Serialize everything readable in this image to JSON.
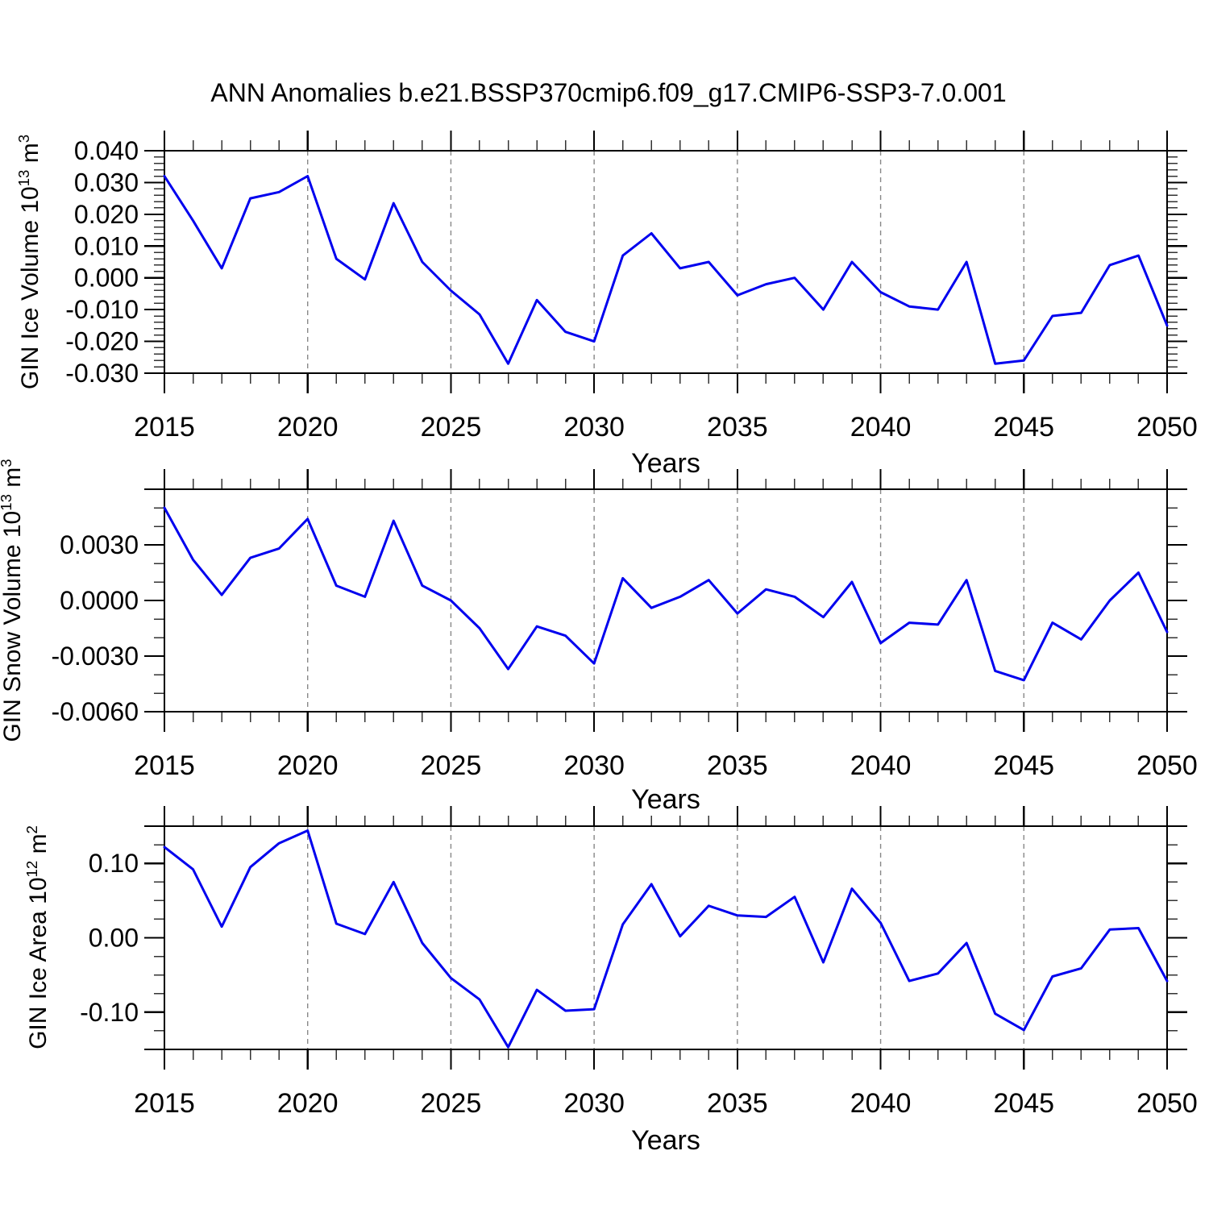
{
  "title": "ANN Anomalies b.e21.BSSP370cmip6.f09_g17.CMIP6-SSP3-7.0.001",
  "line_color": "#0000EE",
  "gridline_color": "#888888",
  "axis_color": "#000000",
  "chart_data": [
    {
      "type": "line",
      "name": "gin-ice-volume",
      "title": "",
      "xlabel": "Years",
      "ylabel": {
        "base": "GIN Ice Volume 10",
        "sup1": "13",
        "mid": " m",
        "sup2": "3"
      },
      "xlim": [
        2015,
        2050
      ],
      "ylim": [
        -0.03,
        0.04
      ],
      "x_major_ticks": [
        2015,
        2020,
        2025,
        2030,
        2035,
        2040,
        2045,
        2050
      ],
      "x_tick_labels": [
        "2015",
        "2020",
        "2025",
        "2030",
        "2035",
        "2040",
        "2045",
        "2050"
      ],
      "x_minor_step": 1,
      "gridline_years": [
        2020,
        2025,
        2030,
        2035,
        2040,
        2045
      ],
      "y_major_ticks": [
        0.04,
        0.03,
        0.02,
        0.01,
        0.0,
        -0.01,
        -0.02,
        -0.03
      ],
      "y_tick_labels": [
        "0.040",
        "0.030",
        "0.020",
        "0.010",
        "0.000",
        "-0.010",
        "-0.020",
        "-0.030"
      ],
      "y_minor_step": 0.002,
      "grid": "vertical-dashed",
      "legend": "none",
      "x": [
        2015,
        2016,
        2017,
        2018,
        2019,
        2020,
        2021,
        2022,
        2023,
        2024,
        2025,
        2026,
        2027,
        2028,
        2029,
        2030,
        2031,
        2032,
        2033,
        2034,
        2035,
        2036,
        2037,
        2038,
        2039,
        2040,
        2041,
        2042,
        2043,
        2044,
        2045,
        2046,
        2047,
        2048,
        2049,
        2050
      ],
      "values": [
        0.032,
        0.018,
        0.003,
        0.025,
        0.027,
        0.032,
        0.006,
        -0.0005,
        0.0235,
        0.005,
        -0.004,
        -0.0115,
        -0.027,
        -0.007,
        -0.017,
        -0.02,
        0.007,
        0.014,
        0.003,
        0.005,
        -0.0055,
        -0.002,
        0.0,
        -0.01,
        0.005,
        -0.0045,
        -0.009,
        -0.01,
        0.005,
        -0.027,
        -0.026,
        -0.012,
        -0.011,
        0.004,
        0.007,
        -0.015
      ]
    },
    {
      "type": "line",
      "name": "gin-snow-volume",
      "title": "",
      "xlabel": "Years",
      "ylabel": {
        "base": "GIN Snow Volume 10",
        "sup1": "13",
        "mid": " m",
        "sup2": "3"
      },
      "xlim": [
        2015,
        2050
      ],
      "ylim": [
        -0.006,
        0.006
      ],
      "x_major_ticks": [
        2015,
        2020,
        2025,
        2030,
        2035,
        2040,
        2045,
        2050
      ],
      "x_tick_labels": [
        "2015",
        "2020",
        "2025",
        "2030",
        "2035",
        "2040",
        "2045",
        "2050"
      ],
      "x_minor_step": 1,
      "gridline_years": [
        2020,
        2025,
        2030,
        2035,
        2040,
        2045
      ],
      "y_major_ticks": [
        0.006,
        0.003,
        0.0,
        -0.003,
        -0.006
      ],
      "y_tick_labels": [
        "",
        "0.0030",
        "0.0000",
        "-0.0030",
        "-0.0060"
      ],
      "y_minor_step": 0.001,
      "grid": "vertical-dashed",
      "legend": "none",
      "x": [
        2015,
        2016,
        2017,
        2018,
        2019,
        2020,
        2021,
        2022,
        2023,
        2024,
        2025,
        2026,
        2027,
        2028,
        2029,
        2030,
        2031,
        2032,
        2033,
        2034,
        2035,
        2036,
        2037,
        2038,
        2039,
        2040,
        2041,
        2042,
        2043,
        2044,
        2045,
        2046,
        2047,
        2048,
        2049,
        2050
      ],
      "values": [
        0.005,
        0.0022,
        0.0003,
        0.0023,
        0.0028,
        0.0044,
        0.0008,
        0.0002,
        0.0043,
        0.0008,
        0.0,
        -0.0015,
        -0.0037,
        -0.0014,
        -0.0019,
        -0.0034,
        0.0012,
        -0.0004,
        0.0002,
        0.0011,
        -0.0007,
        0.0006,
        0.0002,
        -0.0009,
        0.001,
        -0.0023,
        -0.0012,
        -0.0013,
        0.0011,
        -0.0038,
        -0.0043,
        -0.0012,
        -0.0021,
        0.0,
        0.0015,
        -0.0017
      ]
    },
    {
      "type": "line",
      "name": "gin-ice-area",
      "title": "",
      "xlabel": "Years",
      "ylabel": {
        "base": "GIN Ice Area 10",
        "sup1": "12",
        "mid": " m",
        "sup2": "2"
      },
      "xlim": [
        2015,
        2050
      ],
      "ylim": [
        -0.15,
        0.15
      ],
      "x_major_ticks": [
        2015,
        2020,
        2025,
        2030,
        2035,
        2040,
        2045,
        2050
      ],
      "x_tick_labels": [
        "2015",
        "2020",
        "2025",
        "2030",
        "2035",
        "2040",
        "2045",
        "2050"
      ],
      "x_minor_step": 1,
      "gridline_years": [
        2020,
        2025,
        2030,
        2035,
        2040,
        2045
      ],
      "y_major_ticks": [
        0.15,
        0.1,
        0.0,
        -0.1,
        -0.15
      ],
      "y_tick_labels": [
        "",
        "0.10",
        "0.00",
        "-0.10",
        ""
      ],
      "y_minor_step": 0.025,
      "grid": "vertical-dashed",
      "legend": "none",
      "x": [
        2015,
        2016,
        2017,
        2018,
        2019,
        2020,
        2021,
        2022,
        2023,
        2024,
        2025,
        2026,
        2027,
        2028,
        2029,
        2030,
        2031,
        2032,
        2033,
        2034,
        2035,
        2036,
        2037,
        2038,
        2039,
        2040,
        2041,
        2042,
        2043,
        2044,
        2045,
        2046,
        2047,
        2048,
        2049,
        2050
      ],
      "values": [
        0.122,
        0.092,
        0.015,
        0.095,
        0.127,
        0.144,
        0.019,
        0.005,
        0.075,
        -0.007,
        -0.054,
        -0.083,
        -0.147,
        -0.07,
        -0.098,
        -0.096,
        0.018,
        0.072,
        0.002,
        0.043,
        0.03,
        0.028,
        0.055,
        -0.033,
        0.066,
        0.02,
        -0.058,
        -0.048,
        -0.007,
        -0.102,
        -0.124,
        -0.052,
        -0.041,
        0.011,
        0.013,
        -0.058
      ]
    }
  ]
}
